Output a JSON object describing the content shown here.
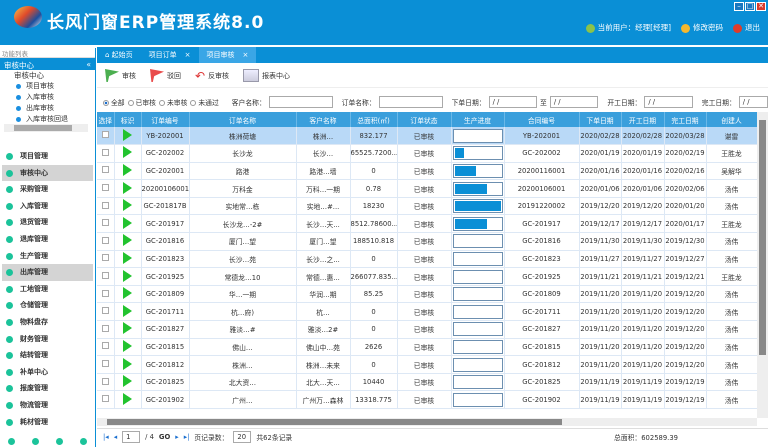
{
  "app": {
    "title": "长风门窗ERP管理系统8.0",
    "current_user": "当前用户：经理[经理]",
    "change_password": "修改密码",
    "logout": "退出"
  },
  "sidebar": {
    "filter_label": "功能列表",
    "section": "审核中心",
    "tree": {
      "root": "审核中心",
      "items": [
        "项目审核",
        "入库审核",
        "出库审核",
        "入库审核回退"
      ]
    },
    "menu": [
      {
        "label": "项目管理"
      },
      {
        "label": "审核中心",
        "selected": true
      },
      {
        "label": "采购管理"
      },
      {
        "label": "入库管理"
      },
      {
        "label": "退货管理"
      },
      {
        "label": "退库管理"
      },
      {
        "label": "生产管理"
      },
      {
        "label": "出库管理",
        "selected": true
      },
      {
        "label": "工地管理"
      },
      {
        "label": "仓储管理"
      },
      {
        "label": "物料盘存"
      },
      {
        "label": "财务管理"
      },
      {
        "label": "结转管理"
      },
      {
        "label": "补单中心"
      },
      {
        "label": "报废管理"
      },
      {
        "label": "物流管理"
      },
      {
        "label": "耗材管理"
      }
    ]
  },
  "tabs": [
    {
      "label": "起始页"
    },
    {
      "label": "项目订单"
    },
    {
      "label": "项目审核",
      "active": true
    }
  ],
  "toolbar": {
    "approve": "审核",
    "reject": "驳回",
    "unapprove": "反审核",
    "report": "报表中心"
  },
  "filter": {
    "radios": [
      "全部",
      "已审核",
      "未审核",
      "未通过"
    ],
    "selected": "全部",
    "customer_label": "客户名称：",
    "order_label": "订单名称：",
    "order_date_label": "下单日期：",
    "to_label": "至",
    "start_date_label": "开工日期：",
    "finish_date_label": "完工日期：",
    "date_placeholder": " /  /"
  },
  "table": {
    "headers": [
      "选择",
      "标识",
      "订单编号",
      "订单名称",
      "客户名称",
      "总面积(㎡)",
      "订单状态",
      "生产进度",
      "合同编号",
      "下单日期",
      "开工日期",
      "完工日期",
      "创建人"
    ],
    "rows": [
      {
        "id": "YB-202001",
        "name": "株洲荷塘",
        "cust": "株洲…",
        "area": "832.177",
        "status": "已审核",
        "progress": 0,
        "contract": "YB-202001",
        "od": "2020/02/28",
        "sd": "2020/02/28",
        "fd": "2020/03/28",
        "creator": "谌雷"
      },
      {
        "id": "GC-202002",
        "name": "长沙龙",
        "cust": "长沙…",
        "area": "65525.7200...",
        "status": "已审核",
        "progress": 23,
        "contract": "GC-202002",
        "od": "2020/01/19",
        "sd": "2020/01/19",
        "fd": "2020/02/19",
        "creator": "王胜龙"
      },
      {
        "id": "GC-202001",
        "name": "路港",
        "cust": "路港…墙",
        "area": "0",
        "status": "已审核",
        "progress": 48,
        "contract": "20200116001",
        "od": "2020/01/16",
        "sd": "2020/01/16",
        "fd": "2020/02/16",
        "creator": "吴解华"
      },
      {
        "id": "20200106001",
        "name": "万科金",
        "cust": "万科…一期",
        "area": "0.78",
        "status": "已审核",
        "progress": 72,
        "contract": "20200106001",
        "od": "2020/01/06",
        "sd": "2020/01/06",
        "fd": "2020/02/06",
        "creator": "汤伟"
      },
      {
        "id": "GC-201817B",
        "name": "实地常…栋",
        "cust": "实地…#...",
        "area": "18230",
        "status": "已审核",
        "progress": 100,
        "contract": "20191220002",
        "od": "2019/12/20",
        "sd": "2019/12/20",
        "fd": "2020/01/20",
        "creator": "汤伟"
      },
      {
        "id": "GC-201917",
        "name": "长沙龙…-2#",
        "cust": "长沙…天...",
        "area": "8512.78600...",
        "status": "已审核",
        "progress": 72,
        "contract": "GC-201917",
        "od": "2019/12/17",
        "sd": "2019/12/17",
        "fd": "2020/01/17",
        "creator": "王胜龙"
      },
      {
        "id": "GC-201816",
        "name": "厦门…望",
        "cust": "厦门…望",
        "area": "188510.818",
        "status": "已审核",
        "progress": 0,
        "contract": "GC-201816",
        "od": "2019/11/30",
        "sd": "2019/11/30",
        "fd": "2019/12/30",
        "creator": "汤伟"
      },
      {
        "id": "GC-201823",
        "name": "长沙…苑",
        "cust": "长沙…之...",
        "area": "0",
        "status": "已审核",
        "progress": 0,
        "contract": "GC-201823",
        "od": "2019/11/27",
        "sd": "2019/11/27",
        "fd": "2019/12/27",
        "creator": "汤伟"
      },
      {
        "id": "GC-201925",
        "name": "常德龙…10",
        "cust": "常德…惠...",
        "area": "266077.835...",
        "status": "已审核",
        "progress": 0,
        "contract": "GC-201925",
        "od": "2019/11/21",
        "sd": "2019/11/21",
        "fd": "2019/12/21",
        "creator": "王胜龙"
      },
      {
        "id": "GC-201809",
        "name": "华…一期",
        "cust": "华润…期",
        "area": "85.25",
        "status": "已审核",
        "progress": 0,
        "contract": "GC-201809",
        "od": "2019/11/20",
        "sd": "2019/11/20",
        "fd": "2019/12/20",
        "creator": "汤伟"
      },
      {
        "id": "GC-201711",
        "name": "杭…府)",
        "cust": "杭…",
        "area": "0",
        "status": "已审核",
        "progress": 0,
        "contract": "GC-201711",
        "od": "2019/11/20",
        "sd": "2019/11/20",
        "fd": "2019/12/20",
        "creator": "汤伟"
      },
      {
        "id": "GC-201827",
        "name": "雅淡…#",
        "cust": "雅淡…2#",
        "area": "0",
        "status": "已审核",
        "progress": 0,
        "contract": "GC-201827",
        "od": "2019/11/20",
        "sd": "2019/11/20",
        "fd": "2019/12/20",
        "creator": "汤伟"
      },
      {
        "id": "GC-201815",
        "name": "佛山…",
        "cust": "佛山中…苑",
        "area": "2626",
        "status": "已审核",
        "progress": 0,
        "contract": "GC-201815",
        "od": "2019/11/20",
        "sd": "2019/11/20",
        "fd": "2019/12/20",
        "creator": "汤伟"
      },
      {
        "id": "GC-201812",
        "name": "株洲…",
        "cust": "株洲…未来",
        "area": "0",
        "status": "已审核",
        "progress": 0,
        "contract": "GC-201812",
        "od": "2019/11/20",
        "sd": "2019/11/20",
        "fd": "2019/12/20",
        "creator": "汤伟"
      },
      {
        "id": "GC-201825",
        "name": "北大资…",
        "cust": "北大…天...",
        "area": "10440",
        "status": "已审核",
        "progress": 0,
        "contract": "GC-201825",
        "od": "2019/11/19",
        "sd": "2019/11/19",
        "fd": "2019/12/19",
        "creator": "汤伟"
      },
      {
        "id": "GC-201902",
        "name": "广州…",
        "cust": "广州万…森林",
        "area": "13318.775",
        "status": "已审核",
        "progress": 0,
        "contract": "GC-201902",
        "od": "2019/11/19",
        "sd": "2019/11/19",
        "fd": "2019/12/19",
        "creator": "汤伟"
      }
    ]
  },
  "pager": {
    "page": "1",
    "total_pages": "/ 4",
    "go": "GO",
    "page_size_label": "页记录数：",
    "page_size": "20",
    "total": "共62条记录"
  },
  "summary": {
    "total_area": "总面积：602589.39"
  },
  "colors": {
    "brand": "#0a8fd6",
    "progress": "#0a8fd6",
    "flag": "#22c32e"
  }
}
